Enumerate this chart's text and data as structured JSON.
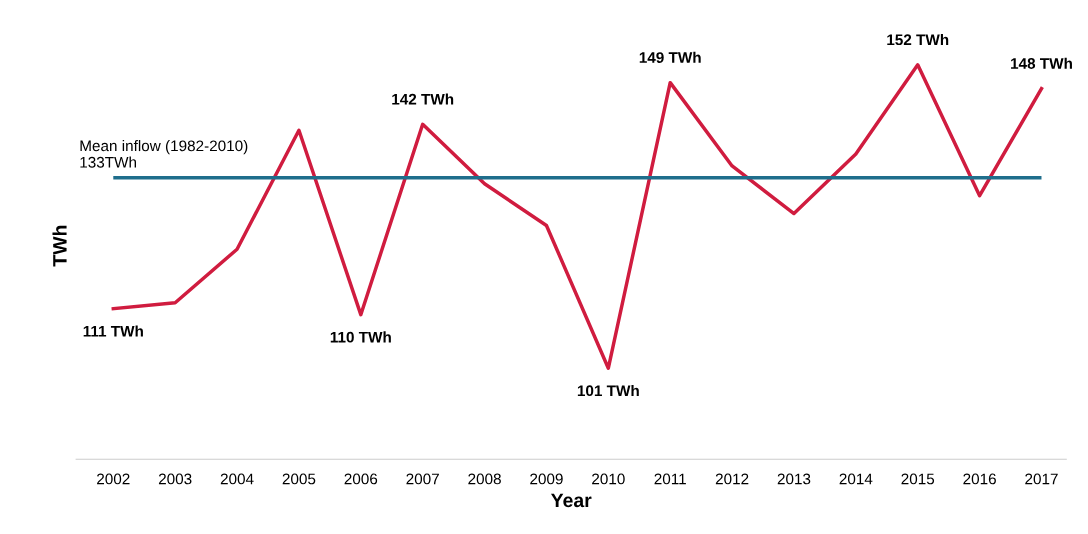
{
  "chart_data": {
    "type": "line",
    "xlabel": "Year",
    "ylabel": "TWh",
    "categories": [
      "2002",
      "2003",
      "2004",
      "2005",
      "2006",
      "2007",
      "2008",
      "2009",
      "2010",
      "2011",
      "2012",
      "2013",
      "2014",
      "2015",
      "2016",
      "2017"
    ],
    "series": [
      {
        "color": "#d01c3f",
        "values": [
          111,
          112,
          121,
          141,
          110,
          142,
          132,
          125,
          101,
          149,
          135,
          127,
          137,
          152,
          130,
          148
        ],
        "value_labels": [
          "111 TWh",
          null,
          null,
          null,
          "110 TWh",
          "142 TWh",
          null,
          null,
          "101 TWh",
          "149 TWh",
          null,
          null,
          null,
          "152 TWh",
          null,
          "148 TWh"
        ]
      }
    ],
    "ref_lines": [
      {
        "axis": "y",
        "value": 133,
        "label": "Mean inflow (1982-2010)\n133TWh",
        "color": "#1f6e8c"
      }
    ],
    "tick_labels": "x",
    "grid": false,
    "legend": false,
    "marker": "none",
    "line_style": "solid"
  }
}
